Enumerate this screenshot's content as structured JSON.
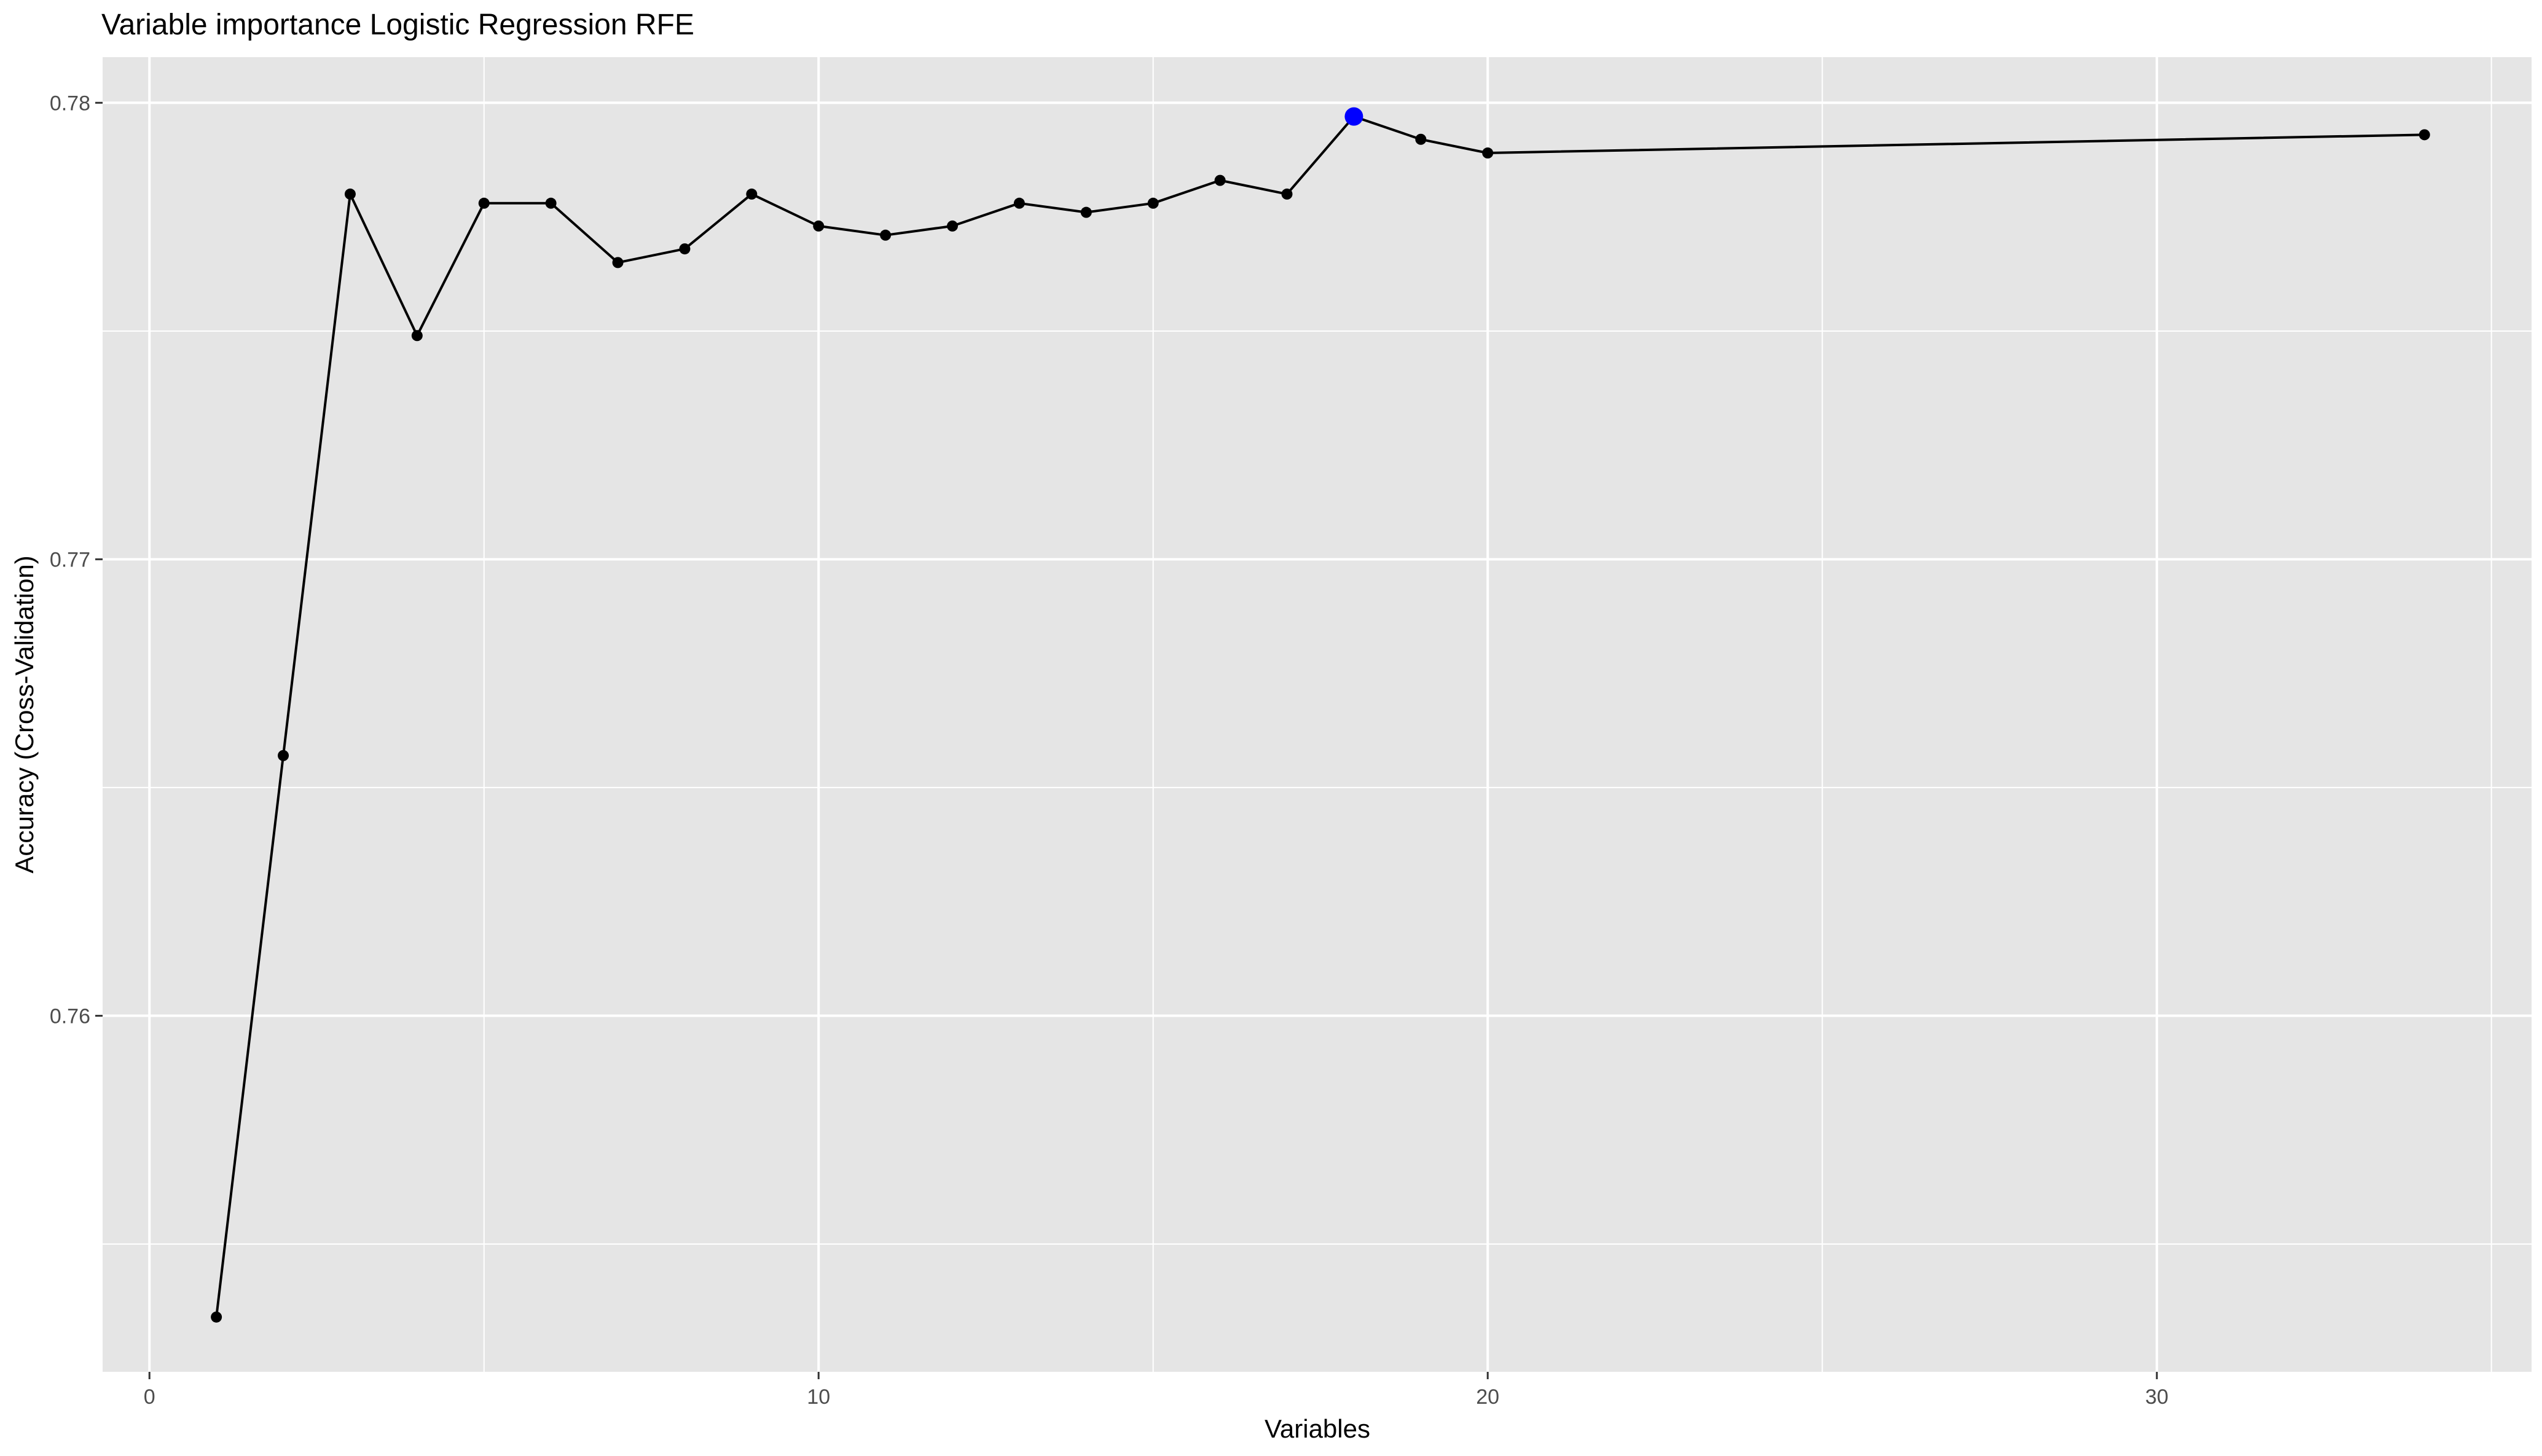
{
  "chart_data": {
    "type": "line",
    "title": "Variable importance Logistic Regression RFE",
    "xlabel": "Variables",
    "ylabel": "Accuracy (Cross-Validation)",
    "xlim": [
      -0.7,
      35.6
    ],
    "ylim": [
      0.7522,
      0.781
    ],
    "x_ticks": [
      0,
      10,
      20,
      30
    ],
    "x_tick_labels": [
      "0",
      "10",
      "20",
      "30"
    ],
    "x_minor_ticks": [
      5,
      15,
      25,
      35
    ],
    "y_ticks": [
      0.76,
      0.77,
      0.78
    ],
    "y_tick_labels": [
      "0.76",
      "0.77",
      "0.78"
    ],
    "y_minor_ticks": [
      0.755,
      0.765,
      0.775
    ],
    "grid": true,
    "legend": "none",
    "background_color": "#e5e5e5",
    "grid_color": "#ffffff",
    "line_color": "#000000",
    "point_color": "#000000",
    "highlight_color": "#0000ff",
    "series": [
      {
        "x": [
          1,
          2,
          3,
          4,
          5,
          6,
          7,
          8,
          9,
          10,
          11,
          12,
          13,
          14,
          15,
          16,
          17,
          18,
          19,
          20,
          34
        ],
        "values": [
          0.7534,
          0.7657,
          0.778,
          0.7749,
          0.7778,
          0.7778,
          0.7765,
          0.7768,
          0.778,
          0.7773,
          0.7771,
          0.7773,
          0.7778,
          0.7776,
          0.7778,
          0.7783,
          0.778,
          0.7797,
          0.7792,
          0.7789,
          0.7793
        ]
      }
    ],
    "highlight": {
      "x": 18,
      "y": 0.7797
    }
  }
}
